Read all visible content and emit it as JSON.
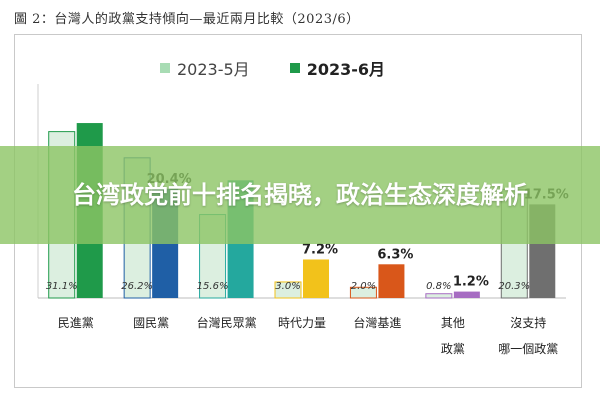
{
  "figure_caption": "圖 2：台灣人的政黨支持傾向—最近兩月比較（2023/6）",
  "banner_text": "台湾政党前十排名揭晓，政治生态深度解析",
  "colors": {
    "may_fill": "#dcefe0",
    "frame": "#c9c9c9"
  },
  "chart_data": {
    "type": "bar",
    "title": "圖 2：台灣人的政黨支持傾向—最近兩月比較（2023/6）",
    "categories": [
      {
        "line1": "民進黨",
        "line2": ""
      },
      {
        "line1": "國民黨",
        "line2": ""
      },
      {
        "line1": "台灣民眾黨",
        "line2": ""
      },
      {
        "line1": "時代力量",
        "line2": ""
      },
      {
        "line1": "台灣基進",
        "line2": ""
      },
      {
        "line1": "其他",
        "line2": "政黨"
      },
      {
        "line1": "沒支持",
        "line2": "哪一個政黨"
      }
    ],
    "series": [
      {
        "name": "2023-5月",
        "values": [
          31.1,
          26.2,
          15.6,
          3.0,
          2.0,
          0.8,
          20.3
        ],
        "labels": [
          "31.1%",
          "26.2%",
          "15.6%",
          "3.0%",
          "2.0%",
          "0.8%",
          "20.3%"
        ]
      },
      {
        "name": "2023-6月",
        "values": [
          32.7,
          20.4,
          22.0,
          7.2,
          6.3,
          1.2,
          17.5
        ],
        "labels": [
          "",
          "20.4%",
          "",
          "7.2%",
          "6.3%",
          "1.2%",
          "17.5%"
        ]
      }
    ],
    "june_colors": [
      "#1f9a4a",
      "#1f5fa6",
      "#24a89e",
      "#f2c21b",
      "#d9571a",
      "#a66cc2",
      "#6f6f6f"
    ],
    "legend_colors": [
      "#a8dcb4",
      "#1f9a4a"
    ],
    "ylim": [
      0,
      40
    ],
    "grid": false,
    "legend": "top"
  }
}
